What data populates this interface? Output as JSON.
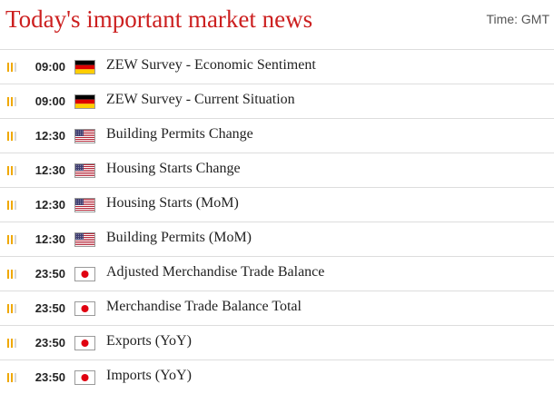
{
  "header": {
    "title": "Today's important market news",
    "timezone": "Time: GMT"
  },
  "colors": {
    "title": "#cc1f1f",
    "importance_on": "#f0a800",
    "importance_off": "#d8d8d8"
  },
  "events": [
    {
      "time": "09:00",
      "flag": "de-flag-icon",
      "title": "ZEW Survey - Economic Sentiment",
      "importance": 2
    },
    {
      "time": "09:00",
      "flag": "de-flag-icon",
      "title": "ZEW Survey - Current Situation",
      "importance": 2
    },
    {
      "time": "12:30",
      "flag": "us-flag-icon",
      "title": "Building Permits Change",
      "importance": 2
    },
    {
      "time": "12:30",
      "flag": "us-flag-icon",
      "title": "Housing Starts Change",
      "importance": 2
    },
    {
      "time": "12:30",
      "flag": "us-flag-icon",
      "title": "Housing Starts (MoM)",
      "importance": 2
    },
    {
      "time": "12:30",
      "flag": "us-flag-icon",
      "title": "Building Permits (MoM)",
      "importance": 2
    },
    {
      "time": "23:50",
      "flag": "jp-flag-icon",
      "title": "Adjusted Merchandise Trade Balance",
      "importance": 2
    },
    {
      "time": "23:50",
      "flag": "jp-flag-icon",
      "title": "Merchandise Trade Balance Total",
      "importance": 2
    },
    {
      "time": "23:50",
      "flag": "jp-flag-icon",
      "title": "Exports (YoY)",
      "importance": 2
    },
    {
      "time": "23:50",
      "flag": "jp-flag-icon",
      "title": "Imports (YoY)",
      "importance": 2
    }
  ]
}
